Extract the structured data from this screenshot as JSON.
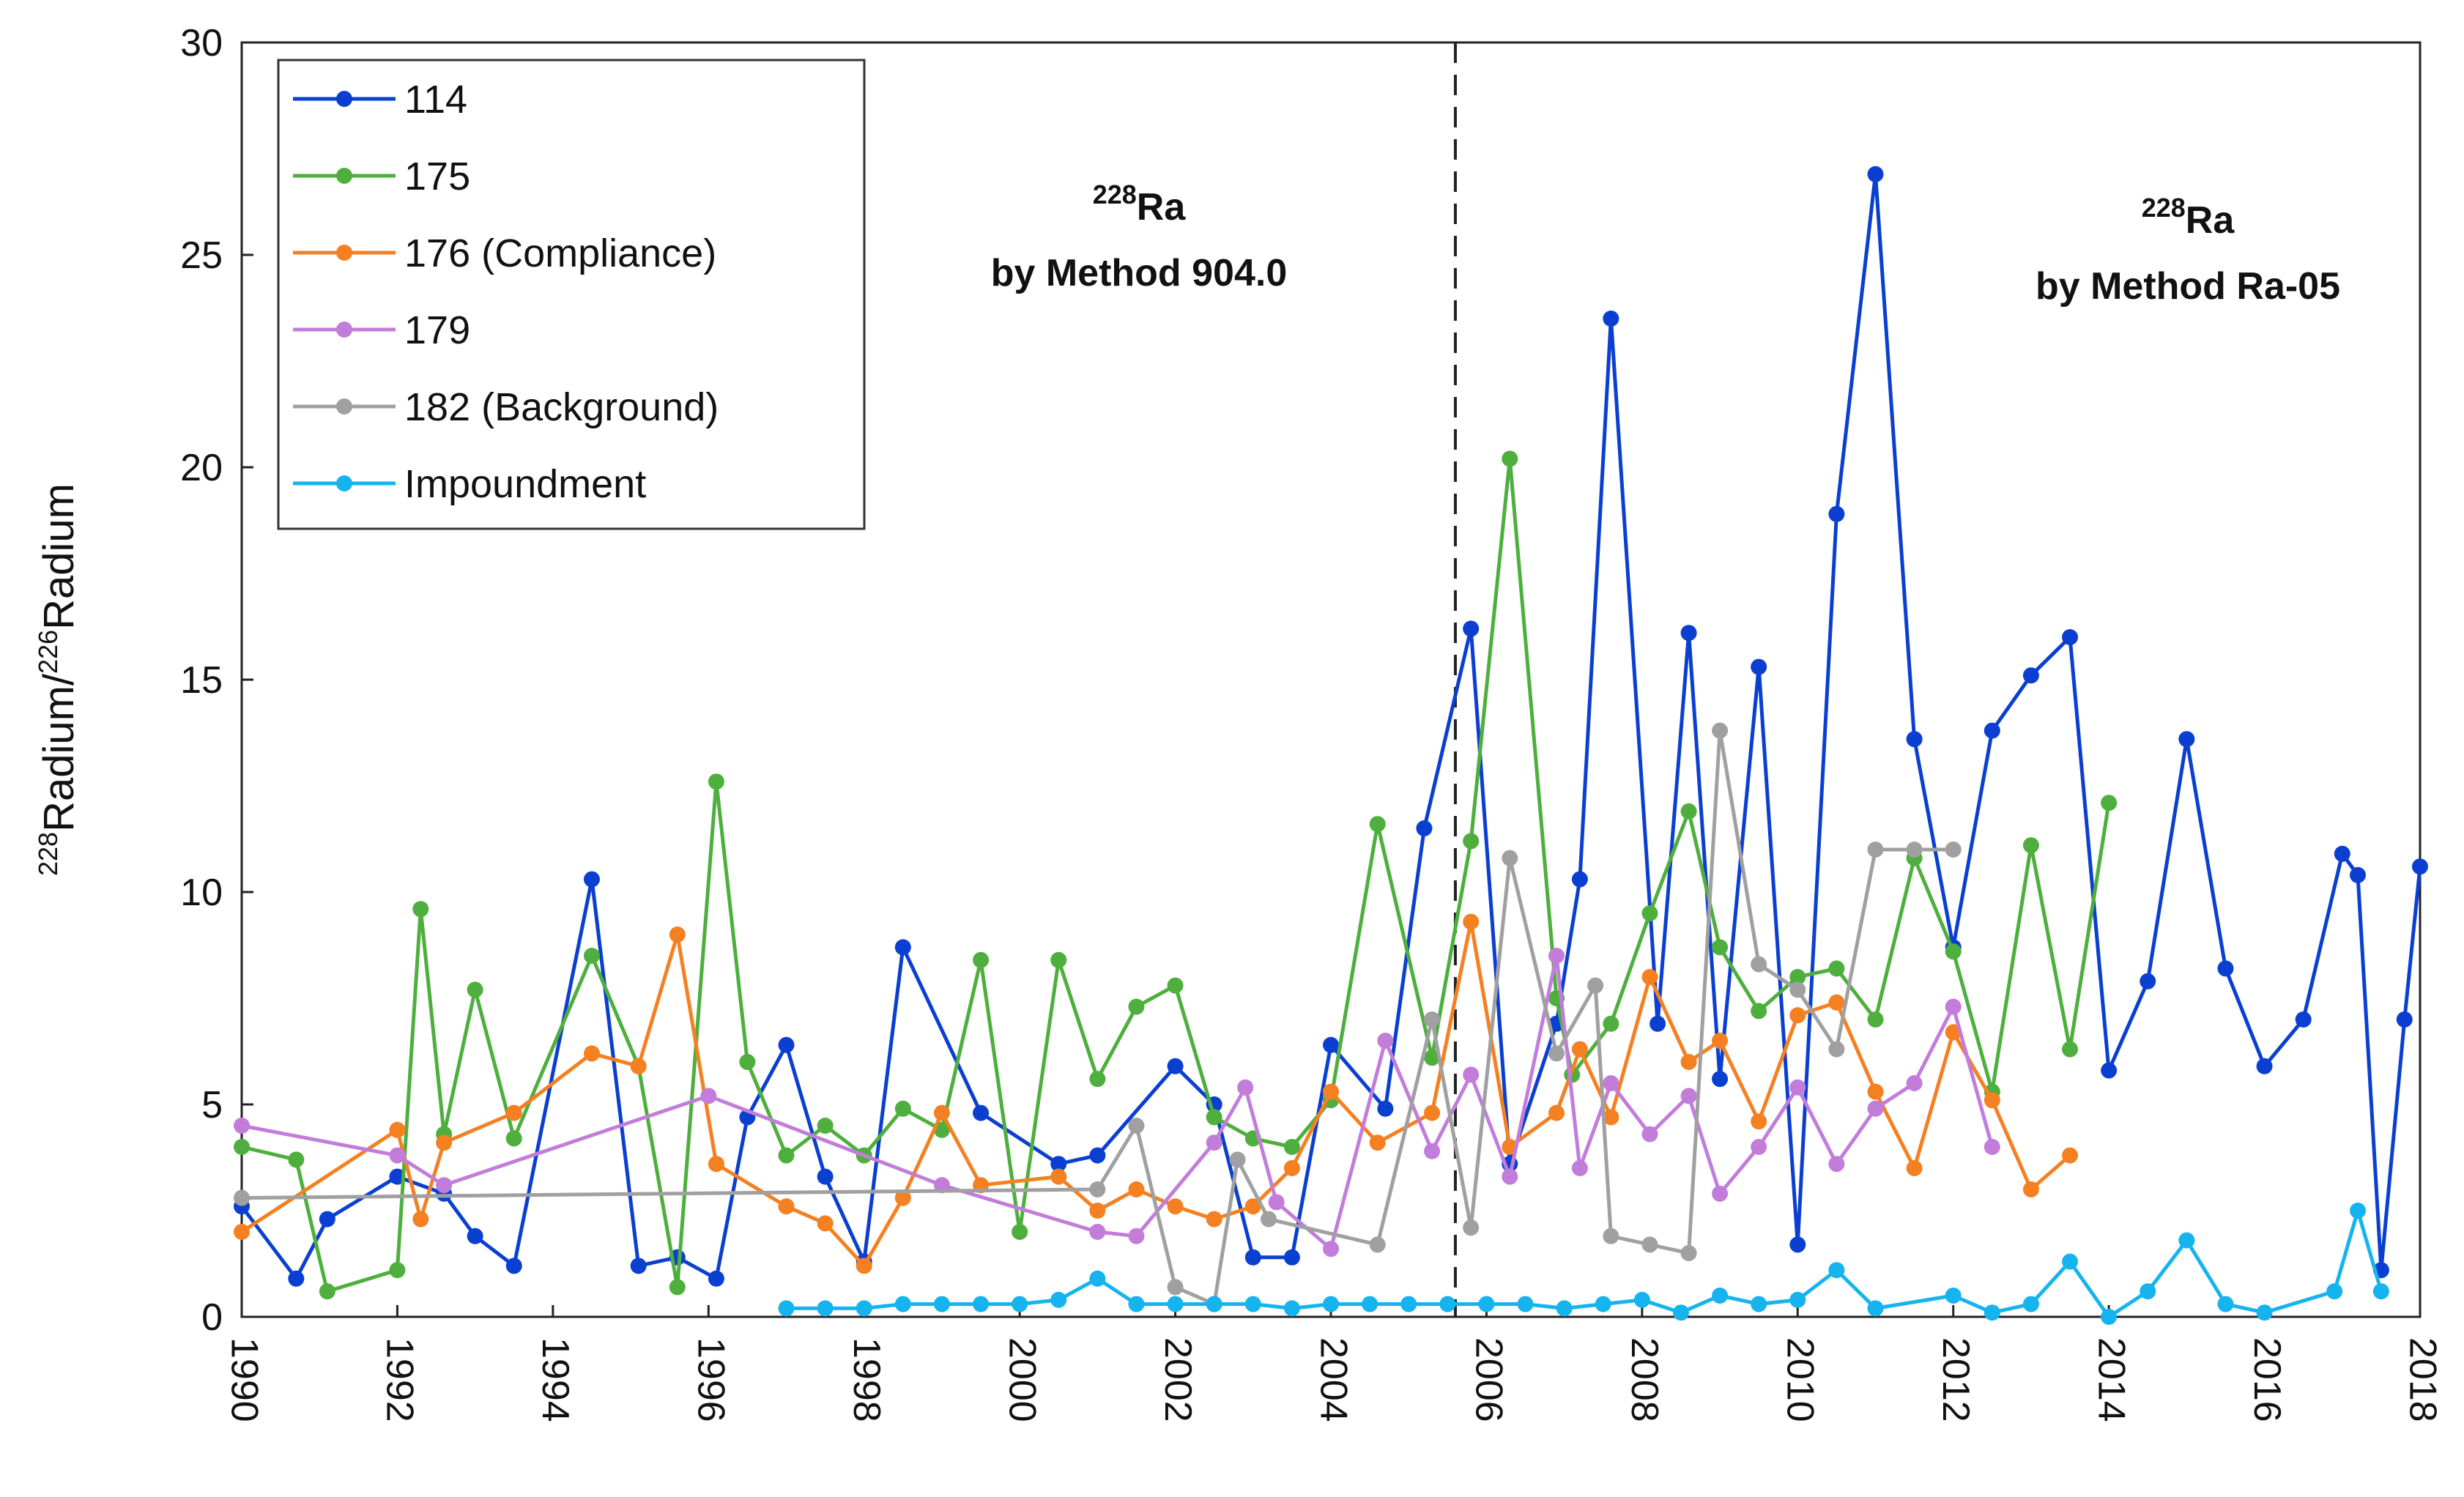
{
  "chart_data": {
    "type": "line",
    "title": "",
    "xlabel": "",
    "ylabel": {
      "sup1": "228",
      "word1": "Radium/",
      "sup2": "226",
      "word2": "Radium"
    },
    "xlim": [
      1990,
      2018
    ],
    "ylim": [
      0,
      30
    ],
    "xticks": [
      1990,
      1992,
      1994,
      1996,
      1998,
      2000,
      2002,
      2004,
      2006,
      2008,
      2010,
      2012,
      2014,
      2016,
      2018
    ],
    "yticks": [
      0,
      5,
      10,
      15,
      20,
      25,
      30
    ],
    "divider_x": 2005.6,
    "legend_position": "top-left",
    "annotations": [
      {
        "sup": "228",
        "word": "Ra",
        "line2": "by Method 904.0"
      },
      {
        "sup": "228",
        "word": "Ra",
        "line2": "by Method Ra-05"
      }
    ],
    "series": [
      {
        "name": "114",
        "color": "#0a3fd1",
        "points": [
          [
            1990.0,
            2.6
          ],
          [
            1990.7,
            0.9
          ],
          [
            1991.1,
            2.3
          ],
          [
            1992.0,
            3.3
          ],
          [
            1992.6,
            2.9
          ],
          [
            1993.0,
            1.9
          ],
          [
            1993.5,
            1.2
          ],
          [
            1994.5,
            10.3
          ],
          [
            1995.1,
            1.2
          ],
          [
            1995.6,
            1.4
          ],
          [
            1996.1,
            0.9
          ],
          [
            1996.5,
            4.7
          ],
          [
            1997.0,
            6.4
          ],
          [
            1997.5,
            3.3
          ],
          [
            1998.0,
            1.3
          ],
          [
            1998.5,
            8.7
          ],
          [
            1999.5,
            4.8
          ],
          [
            2000.5,
            3.6
          ],
          [
            2001.0,
            3.8
          ],
          [
            2002.0,
            5.9
          ],
          [
            2002.5,
            5.0
          ],
          [
            2003.0,
            1.4
          ],
          [
            2003.5,
            1.4
          ],
          [
            2004.0,
            6.4
          ],
          [
            2004.7,
            4.9
          ],
          [
            2005.2,
            11.5
          ],
          [
            2005.8,
            16.2
          ],
          [
            2006.3,
            3.6
          ],
          [
            2006.9,
            6.9
          ],
          [
            2007.2,
            10.3
          ],
          [
            2007.6,
            23.5
          ],
          [
            2008.2,
            6.9
          ],
          [
            2008.6,
            16.1
          ],
          [
            2009.0,
            5.6
          ],
          [
            2009.5,
            15.3
          ],
          [
            2010.0,
            1.7
          ],
          [
            2010.5,
            18.9
          ],
          [
            2011.0,
            26.9
          ],
          [
            2011.5,
            13.6
          ],
          [
            2012.0,
            8.7
          ],
          [
            2012.5,
            13.8
          ],
          [
            2013.0,
            15.1
          ],
          [
            2013.5,
            16.0
          ],
          [
            2014.0,
            5.8
          ],
          [
            2014.5,
            7.9
          ],
          [
            2015.0,
            13.6
          ],
          [
            2015.5,
            8.2
          ],
          [
            2016.0,
            5.9
          ],
          [
            2016.5,
            7.0
          ],
          [
            2017.0,
            10.9
          ],
          [
            2017.2,
            10.4
          ],
          [
            2017.5,
            1.1
          ],
          [
            2017.8,
            7.0
          ],
          [
            2018.0,
            10.6
          ]
        ]
      },
      {
        "name": "175",
        "color": "#4eaf3e",
        "points": [
          [
            1990.0,
            4.0
          ],
          [
            1990.7,
            3.7
          ],
          [
            1991.1,
            0.6
          ],
          [
            1992.0,
            1.1
          ],
          [
            1992.3,
            9.6
          ],
          [
            1992.6,
            4.3
          ],
          [
            1993.0,
            7.7
          ],
          [
            1993.5,
            4.2
          ],
          [
            1994.5,
            8.5
          ],
          [
            1995.1,
            5.9
          ],
          [
            1995.6,
            0.7
          ],
          [
            1996.1,
            12.6
          ],
          [
            1996.5,
            6.0
          ],
          [
            1997.0,
            3.8
          ],
          [
            1997.5,
            4.5
          ],
          [
            1998.0,
            3.8
          ],
          [
            1998.5,
            4.9
          ],
          [
            1999.0,
            4.4
          ],
          [
            1999.5,
            8.4
          ],
          [
            2000.0,
            2.0
          ],
          [
            2000.5,
            8.4
          ],
          [
            2001.0,
            5.6
          ],
          [
            2001.5,
            7.3
          ],
          [
            2002.0,
            7.8
          ],
          [
            2002.5,
            4.7
          ],
          [
            2003.0,
            4.2
          ],
          [
            2003.5,
            4.0
          ],
          [
            2004.0,
            5.1
          ],
          [
            2004.6,
            11.6
          ],
          [
            2005.3,
            6.1
          ],
          [
            2005.8,
            11.2
          ],
          [
            2006.3,
            20.2
          ],
          [
            2006.9,
            7.5
          ],
          [
            2007.1,
            5.7
          ],
          [
            2007.6,
            6.9
          ],
          [
            2008.1,
            9.5
          ],
          [
            2008.6,
            11.9
          ],
          [
            2009.0,
            8.7
          ],
          [
            2009.5,
            7.2
          ],
          [
            2010.0,
            8.0
          ],
          [
            2010.5,
            8.2
          ],
          [
            2011.0,
            7.0
          ],
          [
            2011.5,
            10.8
          ],
          [
            2012.0,
            8.6
          ],
          [
            2012.5,
            5.3
          ],
          [
            2013.0,
            11.1
          ],
          [
            2013.5,
            6.3
          ],
          [
            2014.0,
            12.1
          ]
        ]
      },
      {
        "name": "176 (Compliance)",
        "color": "#f58022",
        "points": [
          [
            1990.0,
            2.0
          ],
          [
            1992.0,
            4.4
          ],
          [
            1992.3,
            2.3
          ],
          [
            1992.6,
            4.1
          ],
          [
            1993.5,
            4.8
          ],
          [
            1994.5,
            6.2
          ],
          [
            1995.1,
            5.9
          ],
          [
            1995.6,
            9.0
          ],
          [
            1996.1,
            3.6
          ],
          [
            1997.0,
            2.6
          ],
          [
            1997.5,
            2.2
          ],
          [
            1998.0,
            1.2
          ],
          [
            1998.5,
            2.8
          ],
          [
            1999.0,
            4.8
          ],
          [
            1999.5,
            3.1
          ],
          [
            2000.5,
            3.3
          ],
          [
            2001.0,
            2.5
          ],
          [
            2001.5,
            3.0
          ],
          [
            2002.0,
            2.6
          ],
          [
            2002.5,
            2.3
          ],
          [
            2003.0,
            2.6
          ],
          [
            2003.5,
            3.5
          ],
          [
            2004.0,
            5.3
          ],
          [
            2004.6,
            4.1
          ],
          [
            2005.3,
            4.8
          ],
          [
            2005.8,
            9.3
          ],
          [
            2006.3,
            4.0
          ],
          [
            2006.9,
            4.8
          ],
          [
            2007.2,
            6.3
          ],
          [
            2007.6,
            4.7
          ],
          [
            2008.1,
            8.0
          ],
          [
            2008.6,
            6.0
          ],
          [
            2009.0,
            6.5
          ],
          [
            2009.5,
            4.6
          ],
          [
            2010.0,
            7.1
          ],
          [
            2010.5,
            7.4
          ],
          [
            2011.0,
            5.3
          ],
          [
            2011.5,
            3.5
          ],
          [
            2012.0,
            6.7
          ],
          [
            2012.5,
            5.1
          ],
          [
            2013.0,
            3.0
          ],
          [
            2013.5,
            3.8
          ]
        ]
      },
      {
        "name": "179",
        "color": "#c27ddb",
        "points": [
          [
            1990.0,
            4.5
          ],
          [
            1992.0,
            3.8
          ],
          [
            1992.6,
            3.1
          ],
          [
            1996.0,
            5.2
          ],
          [
            1999.0,
            3.1
          ],
          [
            2001.0,
            2.0
          ],
          [
            2001.5,
            1.9
          ],
          [
            2002.5,
            4.1
          ],
          [
            2002.9,
            5.4
          ],
          [
            2003.3,
            2.7
          ],
          [
            2004.0,
            1.6
          ],
          [
            2004.7,
            6.5
          ],
          [
            2005.3,
            3.9
          ],
          [
            2005.8,
            5.7
          ],
          [
            2006.3,
            3.3
          ],
          [
            2006.9,
            8.5
          ],
          [
            2007.2,
            3.5
          ],
          [
            2007.6,
            5.5
          ],
          [
            2008.1,
            4.3
          ],
          [
            2008.6,
            5.2
          ],
          [
            2009.0,
            2.9
          ],
          [
            2009.5,
            4.0
          ],
          [
            2010.0,
            5.4
          ],
          [
            2010.5,
            3.6
          ],
          [
            2011.0,
            4.9
          ],
          [
            2011.5,
            5.5
          ],
          [
            2012.0,
            7.3
          ],
          [
            2012.5,
            4.0
          ]
        ]
      },
      {
        "name": "182 (Background)",
        "color": "#a0a0a0",
        "points": [
          [
            1990.0,
            2.8
          ],
          [
            2001.0,
            3.0
          ],
          [
            2001.5,
            4.5
          ],
          [
            2002.0,
            0.7
          ],
          [
            2002.5,
            0.3
          ],
          [
            2002.8,
            3.7
          ],
          [
            2003.2,
            2.3
          ],
          [
            2004.6,
            1.7
          ],
          [
            2005.3,
            7.0
          ],
          [
            2005.8,
            2.1
          ],
          [
            2006.3,
            10.8
          ],
          [
            2006.9,
            6.2
          ],
          [
            2007.4,
            7.8
          ],
          [
            2007.6,
            1.9
          ],
          [
            2008.1,
            1.7
          ],
          [
            2008.6,
            1.5
          ],
          [
            2009.0,
            13.8
          ],
          [
            2009.5,
            8.3
          ],
          [
            2010.0,
            7.7
          ],
          [
            2010.5,
            6.3
          ],
          [
            2011.0,
            11.0
          ],
          [
            2011.5,
            11.0
          ],
          [
            2012.0,
            11.0
          ]
        ]
      },
      {
        "name": "Impoundment",
        "color": "#15b4ee",
        "points": [
          [
            1997.0,
            0.2
          ],
          [
            1997.5,
            0.2
          ],
          [
            1998.0,
            0.2
          ],
          [
            1998.5,
            0.3
          ],
          [
            1999.0,
            0.3
          ],
          [
            1999.5,
            0.3
          ],
          [
            2000.0,
            0.3
          ],
          [
            2000.5,
            0.4
          ],
          [
            2001.0,
            0.9
          ],
          [
            2001.5,
            0.3
          ],
          [
            2002.0,
            0.3
          ],
          [
            2002.5,
            0.3
          ],
          [
            2003.0,
            0.3
          ],
          [
            2003.5,
            0.2
          ],
          [
            2004.0,
            0.3
          ],
          [
            2004.5,
            0.3
          ],
          [
            2005.0,
            0.3
          ],
          [
            2005.5,
            0.3
          ],
          [
            2006.0,
            0.3
          ],
          [
            2006.5,
            0.3
          ],
          [
            2007.0,
            0.2
          ],
          [
            2007.5,
            0.3
          ],
          [
            2008.0,
            0.4
          ],
          [
            2008.5,
            0.1
          ],
          [
            2009.0,
            0.5
          ],
          [
            2009.5,
            0.3
          ],
          [
            2010.0,
            0.4
          ],
          [
            2010.5,
            1.1
          ],
          [
            2011.0,
            0.2
          ],
          [
            2012.0,
            0.5
          ],
          [
            2012.5,
            0.1
          ],
          [
            2013.0,
            0.3
          ],
          [
            2013.5,
            1.3
          ],
          [
            2014.0,
            0.0
          ],
          [
            2014.5,
            0.6
          ],
          [
            2015.0,
            1.8
          ],
          [
            2015.5,
            0.3
          ],
          [
            2016.0,
            0.1
          ],
          [
            2016.9,
            0.6
          ],
          [
            2017.2,
            2.5
          ],
          [
            2017.5,
            0.6
          ]
        ]
      }
    ]
  }
}
